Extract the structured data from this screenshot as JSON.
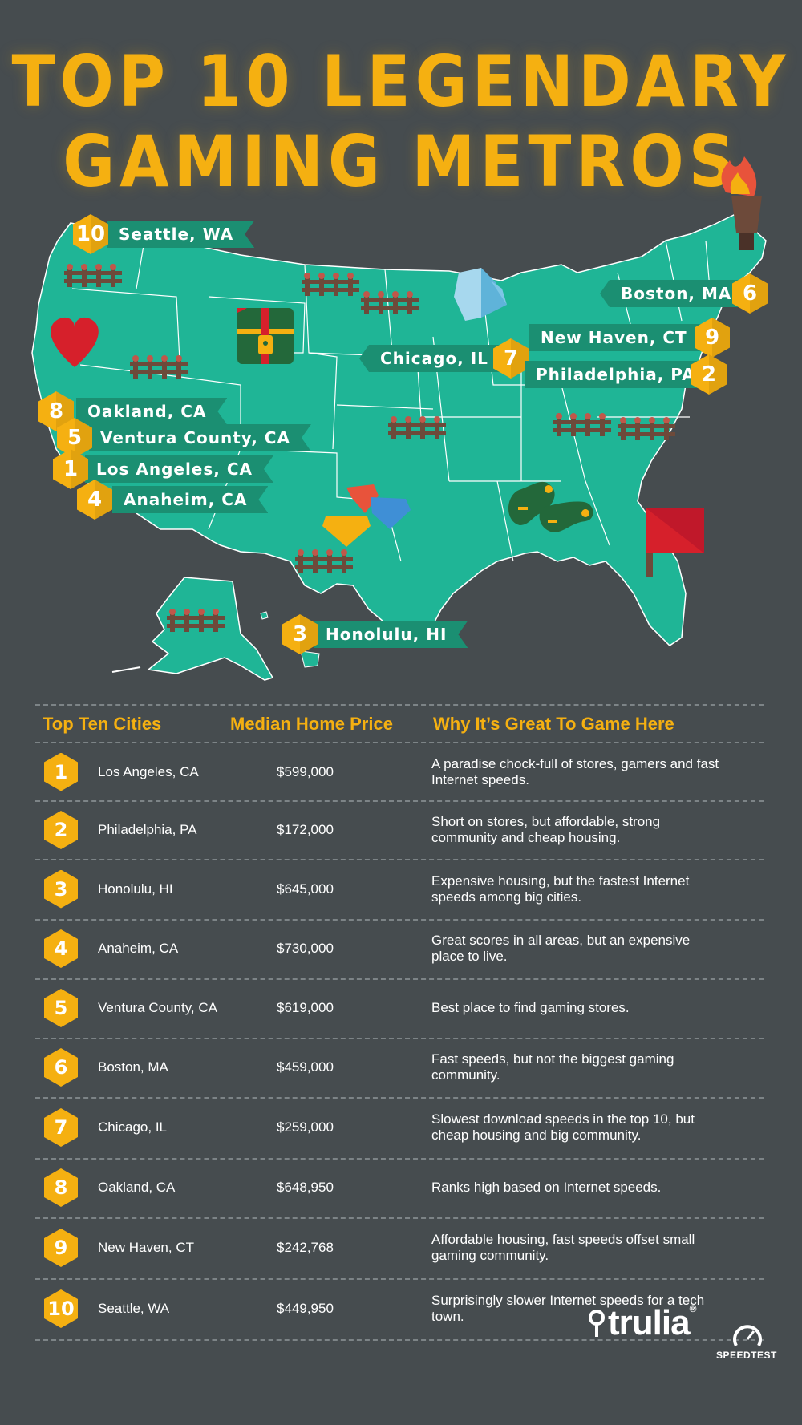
{
  "title": {
    "line1": "TOP 10 LEGENDARY",
    "line2": "GAMING METROS"
  },
  "colors": {
    "background": "#464c4f",
    "accent": "#f5b011",
    "map": "#1fb596",
    "label_bg": "#1b8f72"
  },
  "map_labels": [
    {
      "rank": "10",
      "city": "Seattle, WA"
    },
    {
      "rank": "6",
      "city": "Boston, MA"
    },
    {
      "rank": "9",
      "city": "New Haven, CT"
    },
    {
      "rank": "7",
      "city": "Chicago, IL"
    },
    {
      "rank": "2",
      "city": "Philadelphia, PA"
    },
    {
      "rank": "8",
      "city": "Oakland, CA"
    },
    {
      "rank": "5",
      "city": "Ventura County, CA"
    },
    {
      "rank": "1",
      "city": "Los Angeles, CA"
    },
    {
      "rank": "4",
      "city": "Anaheim, CA"
    },
    {
      "rank": "3",
      "city": "Honolulu, HI"
    }
  ],
  "map_icons": [
    "torch-icon",
    "heart-icon",
    "treasure-chest-icon",
    "crystal-icon",
    "gems-icon",
    "gamepad-icon",
    "flag-icon",
    "fence-icon"
  ],
  "table": {
    "headers": [
      "Top Ten Cities",
      "Median Home Price",
      "Why It’s Great To Game Here"
    ],
    "rows": [
      {
        "rank": "1",
        "city": "Los Angeles, CA",
        "price": "$599,000",
        "why": "A paradise chock-full of stores, gamers and fast Internet speeds."
      },
      {
        "rank": "2",
        "city": "Philadelphia, PA",
        "price": "$172,000",
        "why": "Short on stores, but affordable, strong community and cheap housing."
      },
      {
        "rank": "3",
        "city": "Honolulu, HI",
        "price": "$645,000",
        "why": "Expensive housing, but the fastest Internet speeds among big cities."
      },
      {
        "rank": "4",
        "city": "Anaheim, CA",
        "price": "$730,000",
        "why": "Great scores in all areas, but an expensive place to live."
      },
      {
        "rank": "5",
        "city": "Ventura County, CA",
        "price": "$619,000",
        "why": "Best place to find gaming stores."
      },
      {
        "rank": "6",
        "city": "Boston, MA",
        "price": "$459,000",
        "why": "Fast speeds, but not the biggest gaming community."
      },
      {
        "rank": "7",
        "city": "Chicago, IL",
        "price": "$259,000",
        "why": "Slowest download speeds in the top 10, but cheap housing and big community."
      },
      {
        "rank": "8",
        "city": "Oakland, CA",
        "price": "$648,950",
        "why": "Ranks high based on Internet speeds."
      },
      {
        "rank": "9",
        "city": "New Haven, CT",
        "price": "$242,768",
        "why": "Affordable housing, fast speeds offset small gaming community."
      },
      {
        "rank": "10",
        "city": "Seattle, WA",
        "price": "$449,950",
        "why": "Surprisingly slower Internet speeds for a tech town."
      }
    ]
  },
  "logos": {
    "trulia": "trulia",
    "speedtest": "SPEEDTEST"
  }
}
